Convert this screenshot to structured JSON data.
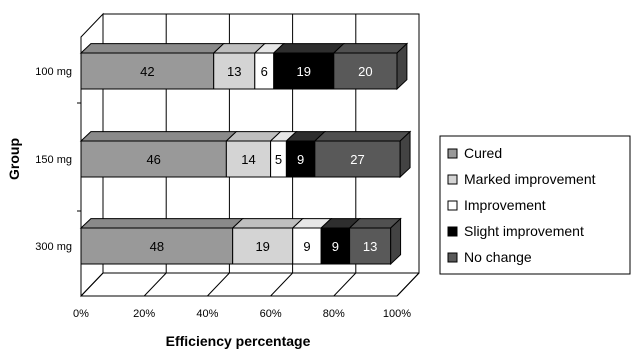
{
  "chart_data": {
    "type": "bar",
    "orientation": "horizontal",
    "stacked": true,
    "style": "3d",
    "categories": [
      "100 mg",
      "150 mg",
      "300 mg"
    ],
    "series": [
      {
        "name": "Cured",
        "values": [
          42,
          46,
          48
        ],
        "color": "#999999",
        "label_color": "#000000"
      },
      {
        "name": "Marked improvement",
        "values": [
          13,
          14,
          19
        ],
        "color": "#d4d4d4",
        "label_color": "#000000"
      },
      {
        "name": "Improvement",
        "values": [
          6,
          5,
          9
        ],
        "color": "#ffffff",
        "label_color": "#000000"
      },
      {
        "name": "Slight improvement",
        "values": [
          19,
          9,
          9
        ],
        "color": "#000000",
        "label_color": "#ffffff"
      },
      {
        "name": "No change",
        "values": [
          20,
          27,
          13
        ],
        "color": "#595959",
        "label_color": "#ffffff"
      }
    ],
    "xlabel": "Efficiency percentage",
    "ylabel": "Group",
    "xlim": [
      0,
      100
    ],
    "xticks": [
      "0%",
      "20%",
      "40%",
      "60%",
      "80%",
      "100%"
    ],
    "grid": "vertical",
    "legend": "right"
  }
}
